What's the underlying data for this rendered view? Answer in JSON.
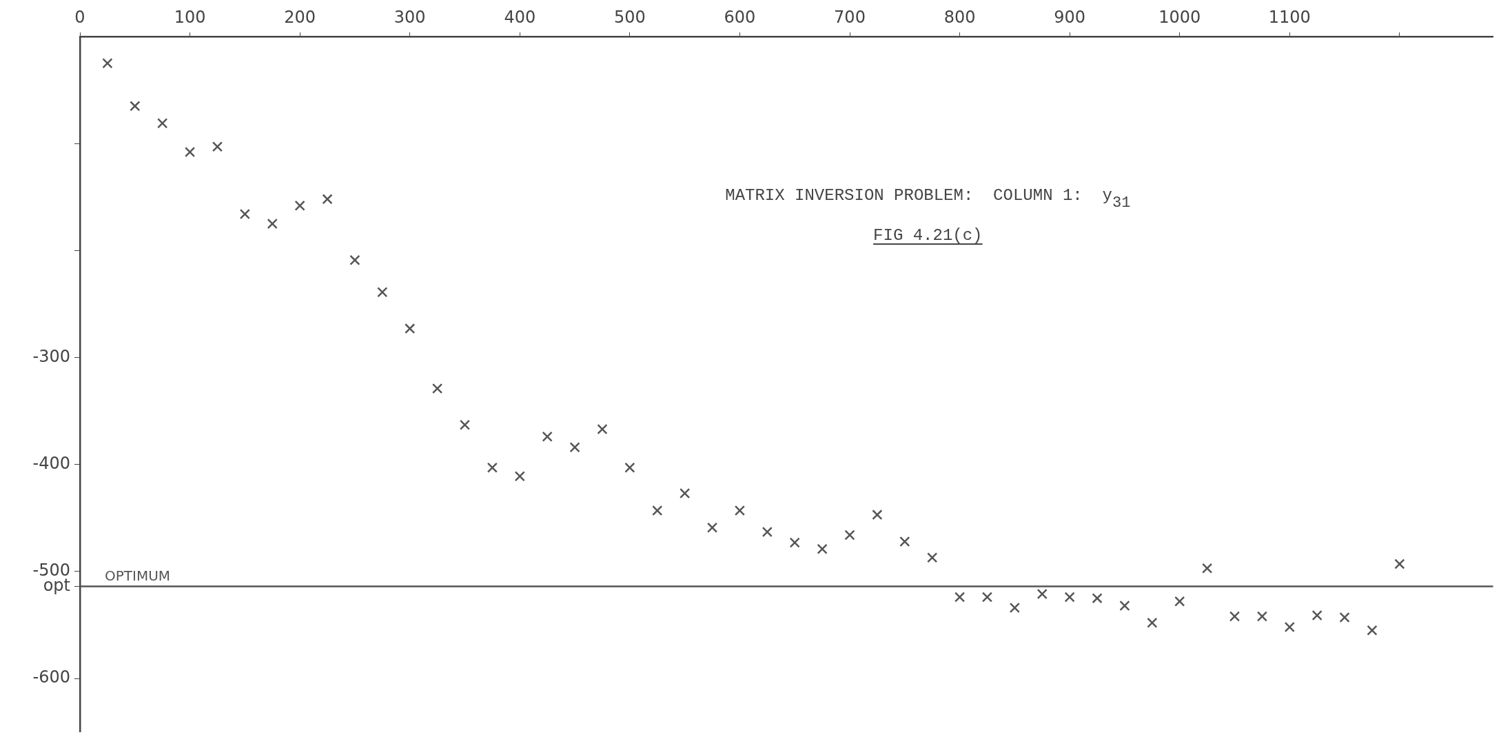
{
  "chart_data": {
    "type": "scatter",
    "title": "MATRIX INVERSION PROBLEM:  COLUMN 1:  y$_{31}$",
    "subtitle": "FIG 4.21(c)",
    "x": [
      25,
      50,
      75,
      100,
      125,
      150,
      175,
      200,
      225,
      250,
      275,
      300,
      325,
      350,
      375,
      400,
      425,
      450,
      475,
      500,
      525,
      550,
      575,
      600,
      625,
      650,
      675,
      700,
      725,
      750,
      775,
      800,
      825,
      850,
      875,
      900,
      925,
      950,
      975,
      1000,
      1025,
      1050,
      1075,
      1100,
      1125,
      1150,
      1175,
      1200
    ],
    "series": [
      {
        "color": "#555555",
        "values": [
          -25,
          -65,
          -81,
          -108,
          -103,
          -166,
          -175,
          -158,
          -152,
          -209,
          -239,
          -273,
          -329,
          -363,
          -403,
          -411,
          -374,
          -384,
          -367,
          -403,
          -443,
          -427,
          -459,
          -443,
          -463,
          -473,
          -479,
          -466,
          -447,
          -472,
          -487,
          -524,
          -524,
          -534,
          -521,
          -524,
          -525,
          -532,
          -548,
          -528,
          -497,
          -542,
          -542,
          -552,
          -541,
          -543,
          -555,
          -493
        ]
      }
    ],
    "xlim": [
      0,
      1285
    ],
    "ylim": [
      -650,
      0
    ],
    "xticks": [
      0,
      100,
      200,
      300,
      400,
      500,
      600,
      700,
      800,
      900,
      1000,
      1100,
      {
        "value": 1200,
        "label": null
      }
    ],
    "yticks": [
      {
        "value": -100,
        "label": null
      },
      {
        "value": -200,
        "label": null
      },
      -300,
      -400,
      -500,
      {
        "value": -514,
        "label": "opt"
      },
      -600
    ],
    "ref_lines": [
      {
        "axis": "y",
        "value": -514,
        "label": "OPTIMUM",
        "color": "#555555"
      }
    ],
    "marker": "cross",
    "grid": false,
    "legend": false
  }
}
